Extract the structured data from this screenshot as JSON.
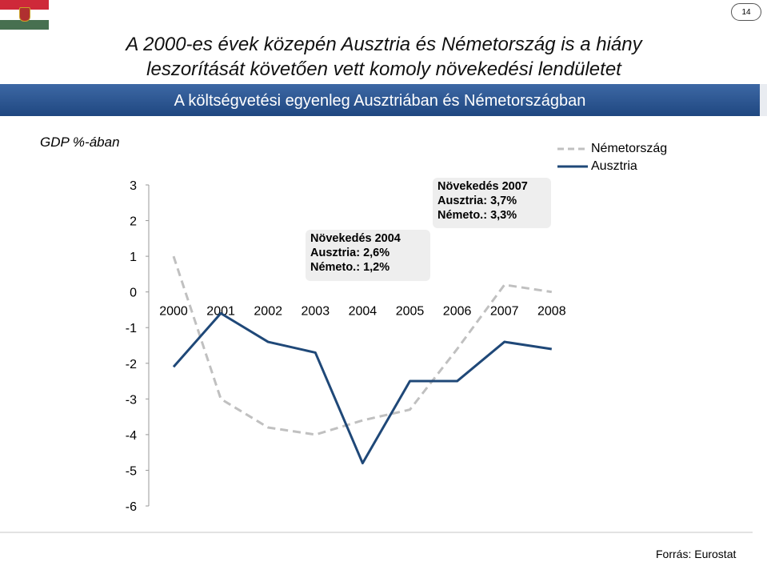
{
  "header": {
    "title_line1": "A 2000-es évek közepén Ausztria és Németország is a hiány",
    "title_line2": "leszorítását követően vett komoly növekedési lendületet",
    "subtitle": "A költségvetési egyenleg Ausztriában és Németországban",
    "page_number": "14",
    "flag_colors": [
      "#ce2939",
      "#ffffff",
      "#477050"
    ]
  },
  "chart_data": {
    "type": "line",
    "ylabel": "GDP %-ában",
    "ylim": [
      -6,
      3
    ],
    "yticks": [
      "3",
      "2",
      "1",
      "0",
      "-1",
      "-2",
      "-3",
      "-4",
      "-5",
      "-6"
    ],
    "categories": [
      "2000",
      "2001",
      "2002",
      "2003",
      "2004",
      "2005",
      "2006",
      "2007",
      "2008"
    ],
    "series": [
      {
        "name": "Németország",
        "color": "#c0c0c0",
        "dash": true,
        "values": [
          1.0,
          -3.0,
          -3.8,
          -4.0,
          -3.6,
          -3.3,
          -1.6,
          0.2,
          0.0
        ]
      },
      {
        "name": "Ausztria",
        "color": "#1f4878",
        "dash": false,
        "values": [
          -2.1,
          -0.6,
          -1.4,
          -1.7,
          -4.8,
          -2.5,
          -2.5,
          -1.4,
          -1.6
        ]
      }
    ],
    "legend_position": "top-right",
    "annotations": [
      {
        "title": "Növekedés 2004",
        "line1": "Ausztria: 2,6%",
        "line2": "Németo.: 1,2%"
      },
      {
        "title": "Növekedés 2007",
        "line1": "Ausztria: 3,7%",
        "line2": "Németo.: 3,3%"
      }
    ]
  },
  "footer": {
    "source": "Forrás: Eurostat"
  }
}
